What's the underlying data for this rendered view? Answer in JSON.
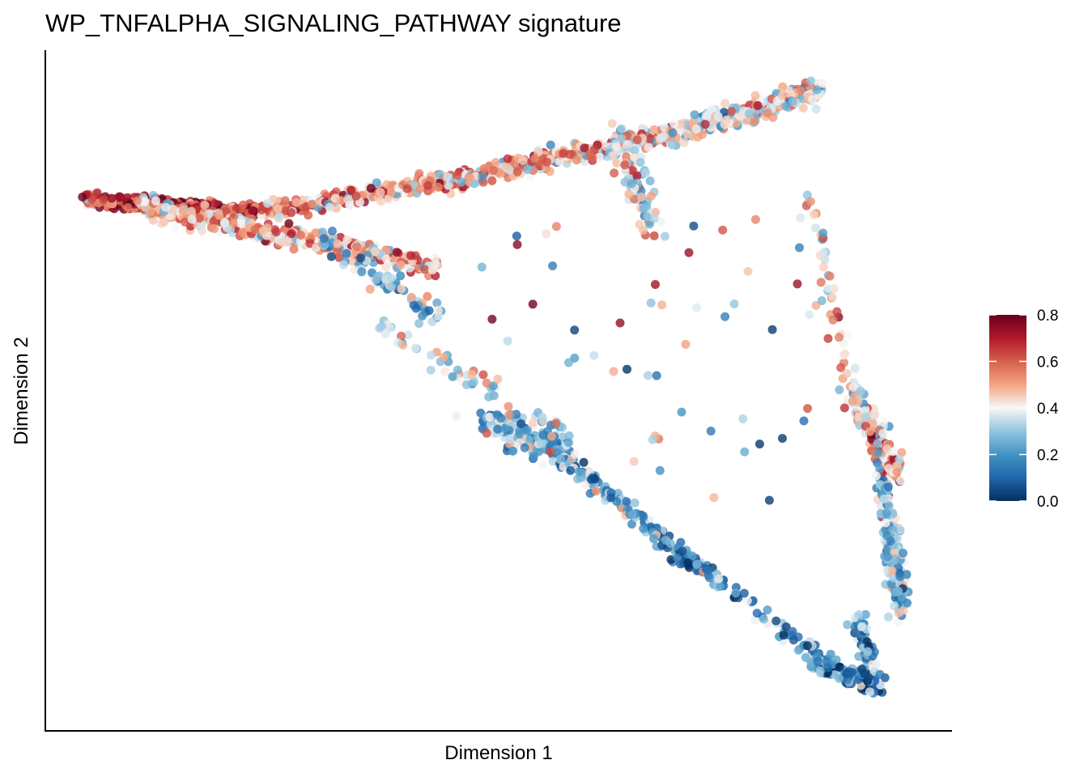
{
  "chart_data": {
    "type": "scatter",
    "title": "WP_TNFALPHA_SIGNALING_PATHWAY signature",
    "xlabel": "Dimension 1",
    "ylabel": "Dimension 2",
    "x_ticks": "none",
    "y_ticks": "none",
    "grid": false,
    "color_scale": {
      "name": "RdBu (reversed)",
      "min": 0.0,
      "max": 0.8,
      "ticks": [
        "0.0",
        "0.2",
        "0.4",
        "0.6",
        "0.8"
      ],
      "stops": [
        "#053061",
        "#2166ac",
        "#4393c3",
        "#92c5de",
        "#f7f7f7",
        "#f4a582",
        "#d6604d",
        "#b2182b",
        "#67001f"
      ]
    },
    "legend_position": "right",
    "point_alpha": 0.8,
    "branch_description": "Trajectory with left tip, upper branch, middle branch, lower-left diagonal branch and right lower branch",
    "point_counts_approx": 3000
  }
}
